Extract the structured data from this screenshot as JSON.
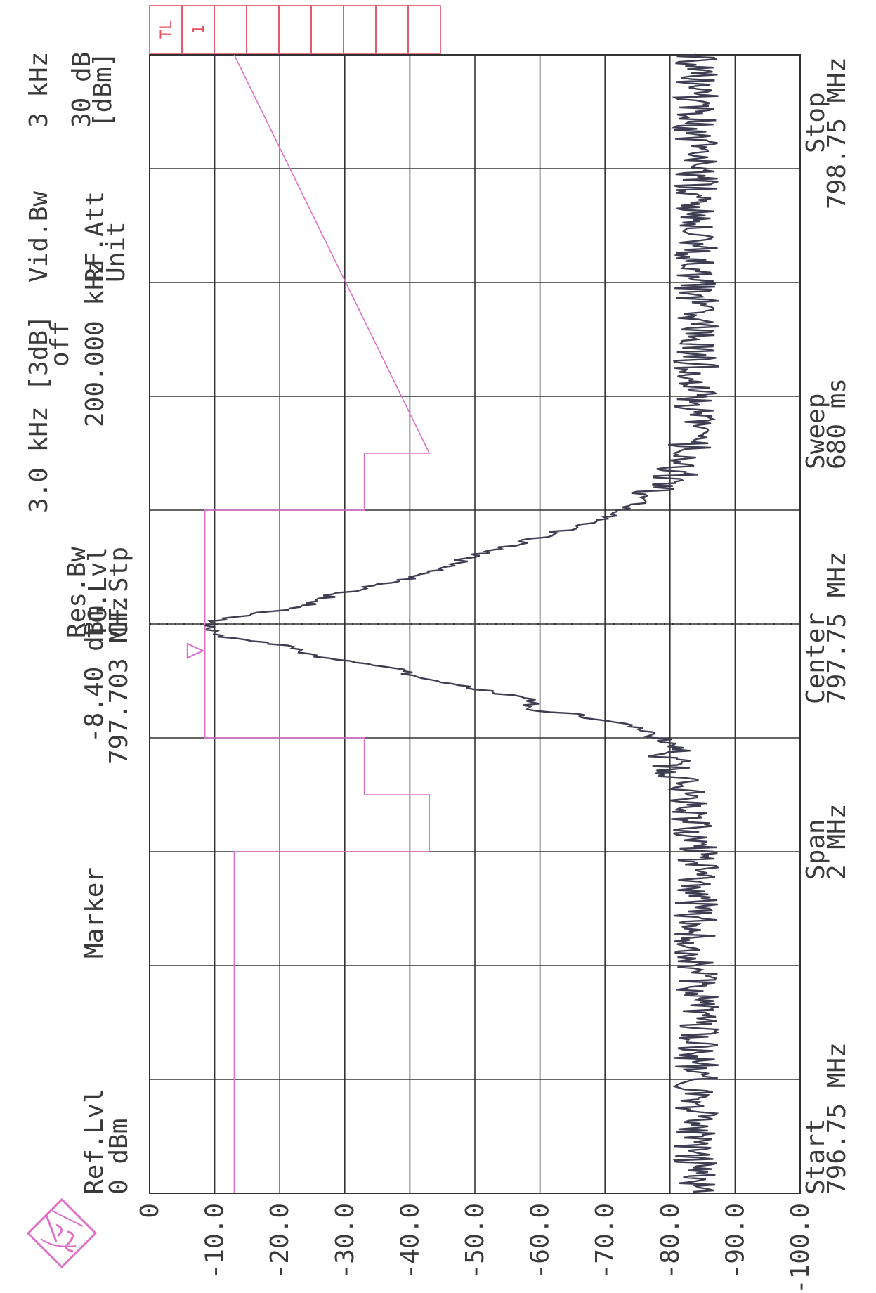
{
  "header": {
    "ref_lvl_label": "Ref.Lvl",
    "ref_lvl_value": "0 dBm",
    "marker_label": "Marker",
    "marker_value": "-8.40 dBm",
    "marker_freq": "797.703 MHz",
    "res_bw_label": "Res.Bw",
    "res_bw_value": "3.0 kHz [3dB]",
    "tg_lvl_label": "TG.Lvl",
    "tg_lvl_value": "off",
    "cf_stp_label": "CF.Stp",
    "cf_stp_value": "200.000 kHz",
    "vid_bw_label": "Vid.Bw",
    "vid_bw_value": "3 kHz",
    "rf_att_label": "RF.Att",
    "rf_att_value": "30 dB",
    "unit_label": "Unit",
    "unit_value": "[dBm]"
  },
  "footer": {
    "start_label": "Start",
    "start_value": "796.75 MHz",
    "span_label": "Span",
    "span_value": "2 MHz",
    "center_label": "Center",
    "center_value": "797.75 MHz",
    "sweep_label": "Sweep",
    "sweep_value": "680 ms",
    "stop_label": "Stop",
    "stop_value": "798.75 MHz"
  },
  "status_boxes": [
    "TL",
    "1",
    "",
    "",
    "",
    "",
    "",
    "",
    ""
  ],
  "colors": {
    "trace": "#3e3d52",
    "limit_line": "#e070c8",
    "grid": "#333333",
    "status_box": "#e05060",
    "logo": "#e070c8"
  },
  "logo_icon": "rohde-schwarz-logo-icon",
  "chart_data": {
    "type": "line",
    "orientation": "rotated-90-clockwise",
    "title": "",
    "xlabel": "",
    "ylabel": "",
    "x_start": 796.75,
    "x_stop": 798.75,
    "x_center": 797.75,
    "xlim": [
      796.75,
      798.75
    ],
    "ylim": [
      -100,
      0
    ],
    "y_ticks": [
      "0",
      "-10.0",
      "-20.0",
      "-30.0",
      "-40.0",
      "-50.0",
      "-60.0",
      "-70.0",
      "-80.0",
      "-90.0",
      "-100.0"
    ],
    "grid": true,
    "marker": {
      "x": 797.703,
      "y": -8.4
    },
    "series": [
      {
        "x": [
          796.75,
          796.85,
          796.95,
          797.05,
          797.15,
          797.25,
          797.35,
          797.45,
          797.5,
          797.53,
          797.55,
          797.57,
          797.59,
          797.6,
          797.62,
          797.64,
          797.65,
          797.67,
          797.69,
          797.7,
          797.71,
          797.73,
          797.75,
          797.76,
          797.78,
          797.8,
          797.83,
          797.85,
          797.87,
          797.9,
          797.93,
          797.95,
          797.97,
          798.0,
          798.05,
          798.15,
          798.25,
          798.35,
          798.45,
          798.55,
          798.65,
          798.75
        ],
        "values": [
          -84,
          -84,
          -84,
          -84,
          -84,
          -84,
          -84,
          -83,
          -80,
          -80,
          -78,
          -74,
          -66,
          -59,
          -58,
          -48,
          -43,
          -38,
          -27,
          -24,
          -22,
          -10,
          -9,
          -11,
          -23,
          -28,
          -40,
          -45,
          -50,
          -59,
          -68,
          -73,
          -76,
          -80,
          -83,
          -84,
          -84,
          -84,
          -84,
          -84,
          -84,
          -84
        ]
      }
    ],
    "limit_lines": [
      {
        "x": [
          796.75,
          797.35,
          797.35,
          797.45,
          797.45,
          797.55,
          797.55,
          797.95,
          797.95,
          798.05,
          798.05,
          798.75
        ],
        "values": [
          -13,
          -13,
          -43,
          -43,
          -33,
          -33,
          -8.5,
          -8.5,
          -33,
          -33,
          -43,
          -13
        ]
      }
    ]
  }
}
